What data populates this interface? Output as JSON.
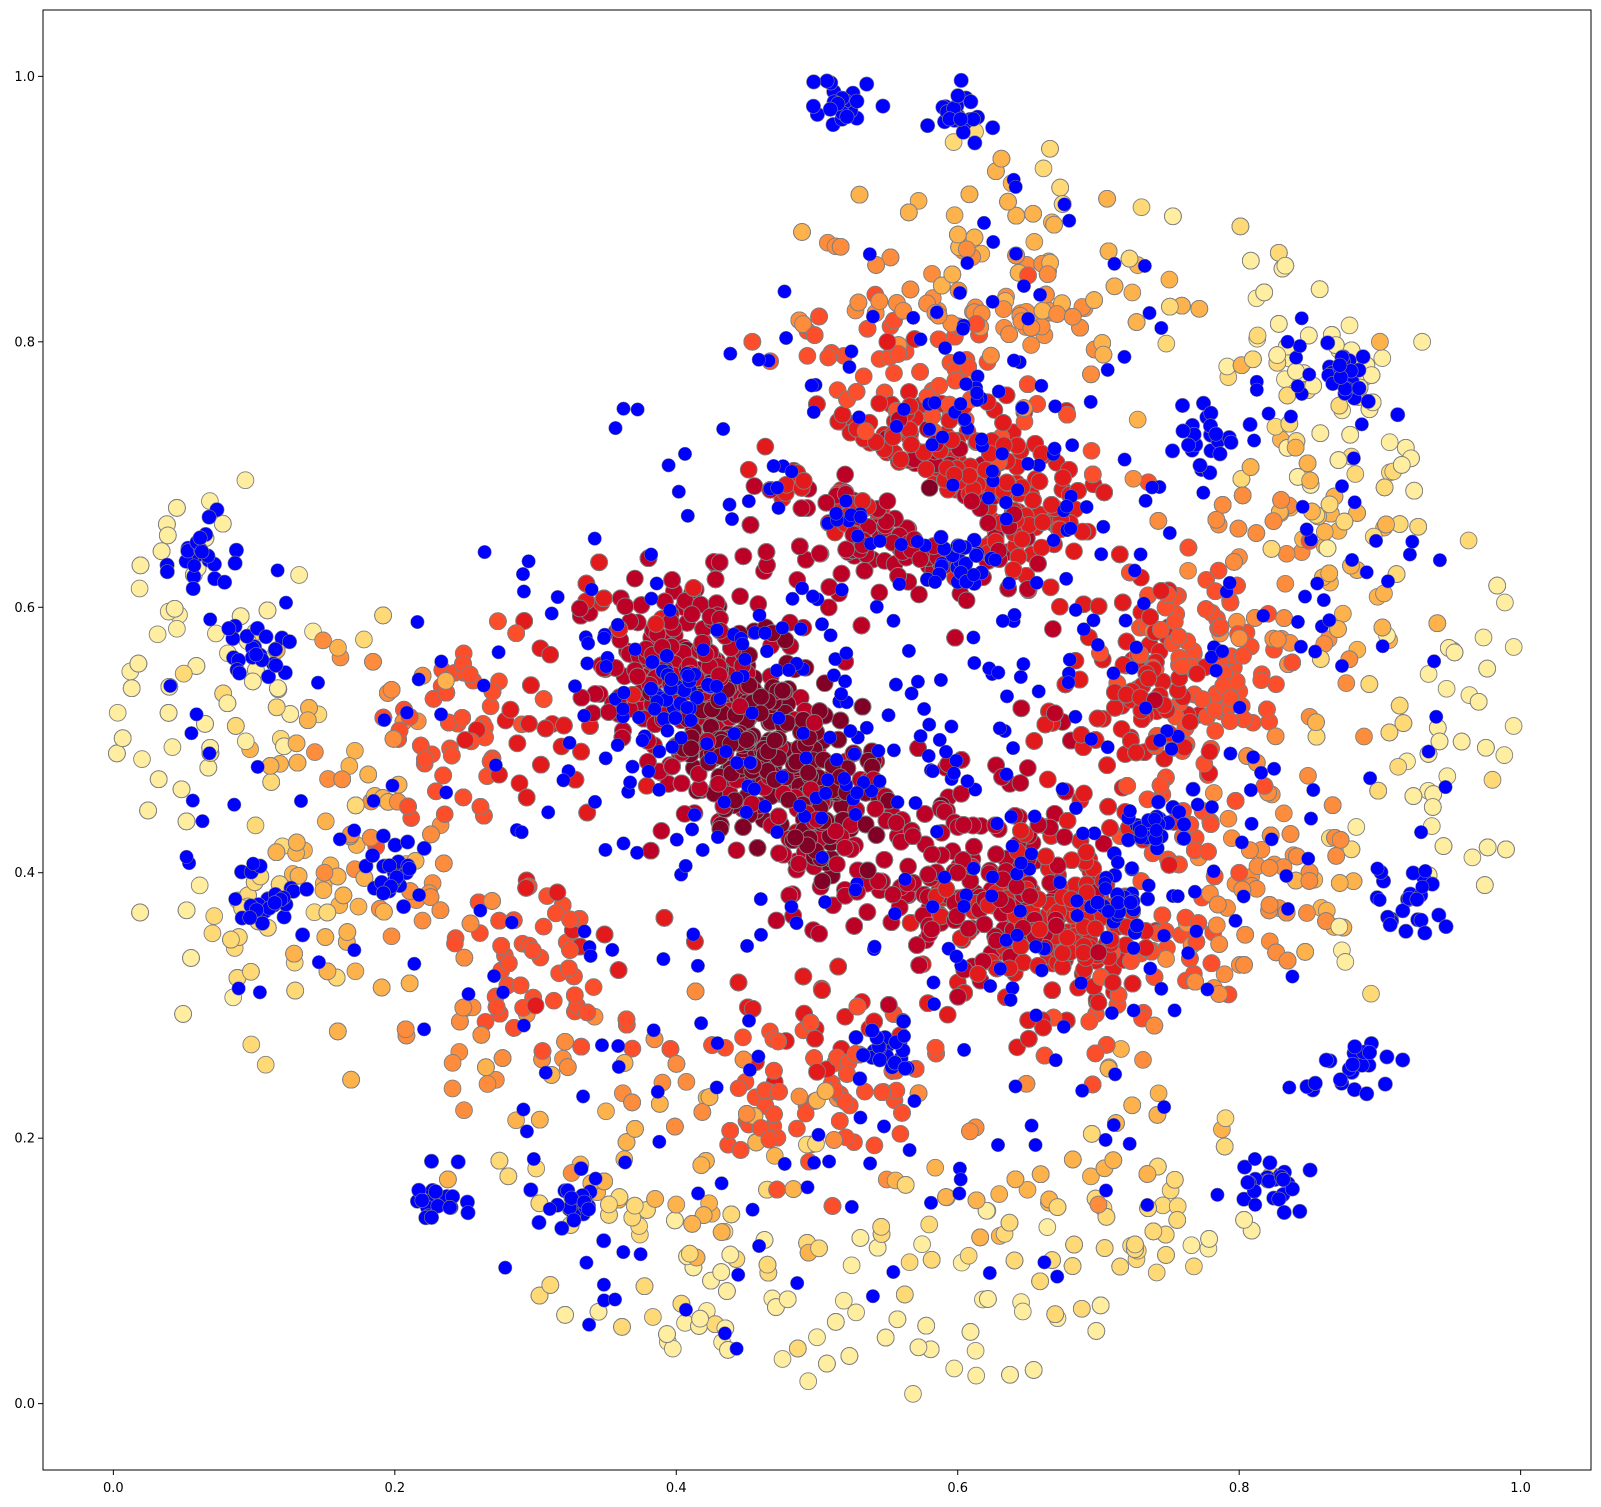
{
  "chart_data": {
    "type": "scatter",
    "title": "",
    "xlabel": "",
    "ylabel": "",
    "xlim": [
      -0.05,
      1.05
    ],
    "ylim": [
      -0.05,
      1.05
    ],
    "grid": false,
    "legend": "none",
    "x_ticks": [
      0.0,
      0.2,
      0.4,
      0.6,
      0.8,
      1.0
    ],
    "y_ticks": [
      0.0,
      0.2,
      0.4,
      0.6,
      0.8,
      1.0
    ],
    "x_tick_labels": [
      "0.0",
      "0.2",
      "0.4",
      "0.6",
      "0.8",
      "1.0"
    ],
    "y_tick_labels": [
      "0.0",
      "0.2",
      "0.4",
      "0.6",
      "0.8",
      "1.0"
    ],
    "marker_edge_color": "#808080",
    "colormap": [
      "#800026",
      "#bd0026",
      "#e31a1c",
      "#fc4e2a",
      "#fd8d3c",
      "#feb24c",
      "#fed976",
      "#ffeda0"
    ],
    "highlight_color": "#0000ff",
    "series": [
      {
        "values_description": "density-colored points",
        "points": [
          {
            "x": 0.45,
            "y": 0.5,
            "level": 0.0
          },
          {
            "x": 0.43,
            "y": 0.53,
            "level": 0.05
          },
          {
            "x": 0.47,
            "y": 0.47,
            "level": 0.05
          },
          {
            "x": 0.41,
            "y": 0.55,
            "level": 0.1
          },
          {
            "x": 0.5,
            "y": 0.44,
            "level": 0.1
          },
          {
            "x": 0.39,
            "y": 0.57,
            "level": 0.15
          },
          {
            "x": 0.55,
            "y": 0.68,
            "level": 0.1
          },
          {
            "x": 0.58,
            "y": 0.69,
            "level": 0.05
          },
          {
            "x": 0.61,
            "y": 0.68,
            "level": 0.1
          },
          {
            "x": 0.52,
            "y": 0.7,
            "level": 0.15
          },
          {
            "x": 0.64,
            "y": 0.67,
            "level": 0.15
          },
          {
            "x": 0.67,
            "y": 0.36,
            "level": 0.1
          },
          {
            "x": 0.63,
            "y": 0.38,
            "level": 0.1
          },
          {
            "x": 0.7,
            "y": 0.34,
            "level": 0.15
          },
          {
            "x": 0.6,
            "y": 0.4,
            "level": 0.15
          },
          {
            "x": 0.74,
            "y": 0.53,
            "level": 0.2
          },
          {
            "x": 0.77,
            "y": 0.55,
            "level": 0.25
          },
          {
            "x": 0.55,
            "y": 0.8,
            "level": 0.3
          },
          {
            "x": 0.65,
            "y": 0.85,
            "level": 0.4
          },
          {
            "x": 0.25,
            "y": 0.5,
            "level": 0.35
          },
          {
            "x": 0.3,
            "y": 0.3,
            "level": 0.35
          },
          {
            "x": 0.5,
            "y": 0.25,
            "level": 0.3
          },
          {
            "x": 0.8,
            "y": 0.4,
            "level": 0.4
          },
          {
            "x": 0.85,
            "y": 0.65,
            "level": 0.45
          },
          {
            "x": 0.15,
            "y": 0.4,
            "level": 0.6
          },
          {
            "x": 0.4,
            "y": 0.15,
            "level": 0.65
          },
          {
            "x": 0.7,
            "y": 0.15,
            "level": 0.6
          },
          {
            "x": 0.9,
            "y": 0.8,
            "level": 0.7
          },
          {
            "x": 0.05,
            "y": 0.55,
            "level": 0.9
          },
          {
            "x": 0.5,
            "y": 0.05,
            "level": 0.95
          },
          {
            "x": 0.93,
            "y": 0.8,
            "level": 0.95
          },
          {
            "x": 0.98,
            "y": 0.47,
            "level": 0.85
          }
        ]
      },
      {
        "values_description": "highlighted points",
        "points": [
          {
            "x": 0.06,
            "y": 0.64
          },
          {
            "x": 0.1,
            "y": 0.57
          },
          {
            "x": 0.11,
            "y": 0.38
          },
          {
            "x": 0.2,
            "y": 0.4
          },
          {
            "x": 0.23,
            "y": 0.15
          },
          {
            "x": 0.33,
            "y": 0.15
          },
          {
            "x": 0.4,
            "y": 0.54
          },
          {
            "x": 0.55,
            "y": 0.27
          },
          {
            "x": 0.72,
            "y": 0.38
          },
          {
            "x": 0.74,
            "y": 0.44
          },
          {
            "x": 0.78,
            "y": 0.73
          },
          {
            "x": 0.88,
            "y": 0.77
          },
          {
            "x": 0.92,
            "y": 0.38
          },
          {
            "x": 0.88,
            "y": 0.25
          },
          {
            "x": 0.82,
            "y": 0.17
          },
          {
            "x": 0.6,
            "y": 0.63
          },
          {
            "x": 0.52,
            "y": 0.98
          },
          {
            "x": 0.6,
            "y": 0.97
          }
        ]
      }
    ]
  }
}
